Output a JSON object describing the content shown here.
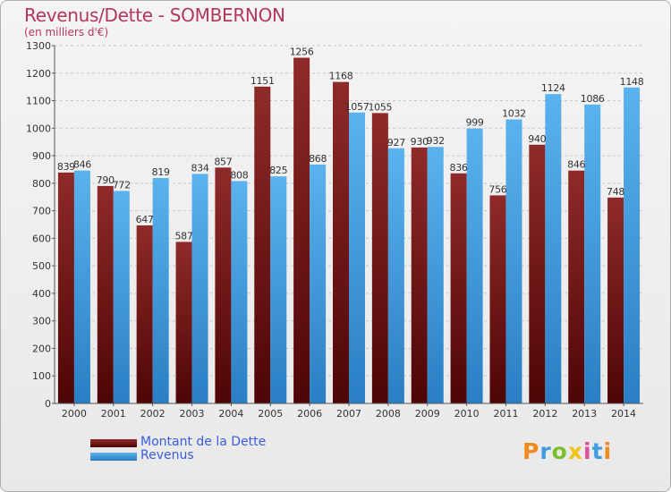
{
  "header": {
    "title": "Revenus/Dette - SOMBERNON",
    "subtitle": "(en milliers d'€)"
  },
  "chart_data": {
    "type": "bar",
    "title": "Revenus/Dette - SOMBERNON",
    "subtitle": "(en milliers d'€)",
    "xlabel": "",
    "ylabel": "",
    "categories": [
      "2000",
      "2001",
      "2002",
      "2003",
      "2004",
      "2005",
      "2006",
      "2007",
      "2008",
      "2009",
      "2010",
      "2011",
      "2012",
      "2013",
      "2014"
    ],
    "series": [
      {
        "name": "Montant de la Dette",
        "color": "#7a1a1a",
        "values": [
          839,
          790,
          647,
          587,
          857,
          1151,
          1256,
          1168,
          1055,
          930,
          836,
          756,
          940,
          846,
          748
        ]
      },
      {
        "name": "Revenus",
        "color": "#3f9ee0",
        "values": [
          846,
          772,
          819,
          834,
          808,
          825,
          868,
          1057,
          927,
          932,
          999,
          1032,
          1124,
          1086,
          1148
        ]
      }
    ],
    "ylim": [
      0,
      1300
    ],
    "yticks": [
      0,
      100,
      200,
      300,
      400,
      500,
      600,
      700,
      800,
      900,
      1000,
      1100,
      1200,
      1300
    ],
    "grid": true,
    "legend": "bottom-left"
  },
  "legend": [
    {
      "label": "Montant de la Dette",
      "color": "#7a1a1a"
    },
    {
      "label": "Revenus",
      "color": "#3f9ee0"
    }
  ],
  "logo": {
    "text": "Proxiti",
    "letters": [
      {
        "ch": "P",
        "color": "#f08a1c"
      },
      {
        "ch": "r",
        "color": "#3f9ee0"
      },
      {
        "ch": "o",
        "color": "#7cbf2e"
      },
      {
        "ch": "x",
        "color": "#f0c419"
      },
      {
        "ch": "i",
        "color": "#e0509a"
      },
      {
        "ch": "t",
        "color": "#3f9ee0"
      },
      {
        "ch": "i",
        "color": "#f08a1c"
      }
    ]
  }
}
